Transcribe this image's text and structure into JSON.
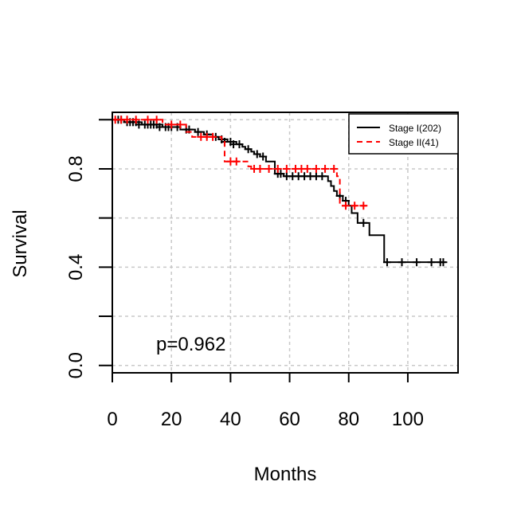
{
  "chart_data": {
    "type": "line",
    "subtype": "kaplan-meier",
    "xlabel": "Months",
    "ylabel": "Survival",
    "xlim": [
      0,
      117
    ],
    "ylim": [
      -0.03,
      1.03
    ],
    "xticks": [
      0,
      20,
      40,
      60,
      80,
      100
    ],
    "yticks": [
      0.0,
      0.4,
      0.8
    ],
    "yminor_ticks": [
      0.2,
      0.6,
      1.0
    ],
    "grid": true,
    "grid_x": [
      0,
      20,
      40,
      60,
      80,
      100
    ],
    "grid_y": [
      0.0,
      0.2,
      0.4,
      0.6,
      0.8,
      1.0
    ],
    "annotation": "p=0.962",
    "legend_position": "top-right",
    "series": [
      {
        "name": "Stage I(202)",
        "color": "#000000",
        "style": "solid",
        "steps": [
          [
            0,
            1.0
          ],
          [
            4,
            0.99
          ],
          [
            10,
            0.98
          ],
          [
            17,
            0.97
          ],
          [
            23,
            0.96
          ],
          [
            28,
            0.95
          ],
          [
            31,
            0.94
          ],
          [
            34,
            0.93
          ],
          [
            36,
            0.92
          ],
          [
            39,
            0.91
          ],
          [
            42,
            0.9
          ],
          [
            44,
            0.89
          ],
          [
            45,
            0.88
          ],
          [
            47,
            0.87
          ],
          [
            48,
            0.86
          ],
          [
            50,
            0.85
          ],
          [
            52,
            0.83
          ],
          [
            55,
            0.78
          ],
          [
            58,
            0.77
          ],
          [
            73,
            0.75
          ],
          [
            74,
            0.73
          ],
          [
            75,
            0.71
          ],
          [
            76,
            0.69
          ],
          [
            78,
            0.67
          ],
          [
            80,
            0.65
          ],
          [
            81,
            0.62
          ],
          [
            83,
            0.58
          ],
          [
            87,
            0.53
          ],
          [
            92,
            0.42
          ],
          [
            113,
            0.42
          ]
        ],
        "censored": [
          [
            2,
            1.0
          ],
          [
            3,
            1.0
          ],
          [
            5,
            0.99
          ],
          [
            6,
            0.99
          ],
          [
            7,
            0.99
          ],
          [
            8,
            0.99
          ],
          [
            9,
            0.98
          ],
          [
            11,
            0.98
          ],
          [
            12,
            0.98
          ],
          [
            13,
            0.98
          ],
          [
            14,
            0.98
          ],
          [
            15,
            0.98
          ],
          [
            16,
            0.97
          ],
          [
            18,
            0.97
          ],
          [
            19,
            0.97
          ],
          [
            20,
            0.97
          ],
          [
            22,
            0.97
          ],
          [
            25,
            0.96
          ],
          [
            26,
            0.96
          ],
          [
            29,
            0.95
          ],
          [
            32,
            0.94
          ],
          [
            35,
            0.93
          ],
          [
            37,
            0.92
          ],
          [
            38,
            0.91
          ],
          [
            40,
            0.91
          ],
          [
            41,
            0.9
          ],
          [
            43,
            0.9
          ],
          [
            46,
            0.88
          ],
          [
            49,
            0.86
          ],
          [
            51,
            0.85
          ],
          [
            56,
            0.78
          ],
          [
            57,
            0.78
          ],
          [
            59,
            0.77
          ],
          [
            61,
            0.77
          ],
          [
            63,
            0.77
          ],
          [
            65,
            0.77
          ],
          [
            67,
            0.77
          ],
          [
            69,
            0.77
          ],
          [
            71,
            0.77
          ],
          [
            77,
            0.69
          ],
          [
            79,
            0.67
          ],
          [
            85,
            0.58
          ],
          [
            93,
            0.42
          ],
          [
            98,
            0.42
          ],
          [
            103,
            0.42
          ],
          [
            108,
            0.42
          ],
          [
            111,
            0.42
          ],
          [
            112,
            0.42
          ]
        ]
      },
      {
        "name": "Stage II(41)",
        "color": "#ff0000",
        "style": "dashed",
        "steps": [
          [
            0,
            1.0
          ],
          [
            17,
            0.98
          ],
          [
            25,
            0.95
          ],
          [
            27,
            0.93
          ],
          [
            37,
            0.91
          ],
          [
            38,
            0.83
          ],
          [
            46,
            0.81
          ],
          [
            47,
            0.8
          ],
          [
            76,
            0.77
          ],
          [
            77,
            0.65
          ],
          [
            86,
            0.65
          ]
        ],
        "censored": [
          [
            1,
            1.0
          ],
          [
            3,
            1.0
          ],
          [
            5,
            1.0
          ],
          [
            8,
            1.0
          ],
          [
            12,
            1.0
          ],
          [
            15,
            1.0
          ],
          [
            20,
            0.98
          ],
          [
            23,
            0.98
          ],
          [
            30,
            0.93
          ],
          [
            32,
            0.93
          ],
          [
            34,
            0.93
          ],
          [
            40,
            0.83
          ],
          [
            42,
            0.83
          ],
          [
            48,
            0.8
          ],
          [
            50,
            0.8
          ],
          [
            53,
            0.8
          ],
          [
            56,
            0.8
          ],
          [
            59,
            0.8
          ],
          [
            62,
            0.8
          ],
          [
            64,
            0.8
          ],
          [
            66,
            0.8
          ],
          [
            69,
            0.8
          ],
          [
            72,
            0.8
          ],
          [
            75,
            0.8
          ],
          [
            79,
            0.65
          ],
          [
            82,
            0.65
          ],
          [
            85,
            0.65
          ]
        ]
      }
    ]
  }
}
